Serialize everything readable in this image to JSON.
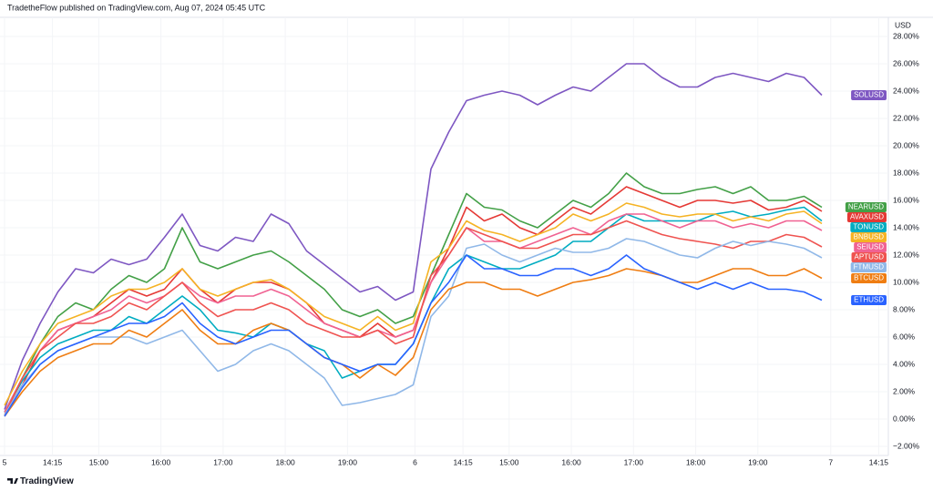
{
  "header": "TradetheFlow published on TradingView.com, Aug 07, 2024 05:45 UTC",
  "footer": "TradingView",
  "chart_data": {
    "type": "line",
    "currency": "USD",
    "grid": true,
    "x": [
      0,
      1,
      2,
      3,
      4,
      5,
      6,
      7,
      8,
      9,
      10,
      11,
      12,
      13,
      14,
      15,
      16,
      17,
      18,
      19,
      20,
      21,
      22,
      23,
      24,
      25,
      26,
      27,
      28,
      29,
      30,
      31,
      32,
      33,
      34,
      35,
      36,
      37,
      38,
      39,
      40,
      41,
      42,
      43,
      44,
      45,
      46
    ],
    "xlim": [
      0,
      50
    ],
    "xticks": [
      {
        "value": 0,
        "label": "5"
      },
      {
        "value": 2.7,
        "label": "14:15"
      },
      {
        "value": 5.3,
        "label": "15:00"
      },
      {
        "value": 8.8,
        "label": "16:00"
      },
      {
        "value": 12.3,
        "label": "17:00"
      },
      {
        "value": 15.8,
        "label": "18:00"
      },
      {
        "value": 19.3,
        "label": "19:00"
      },
      {
        "value": 23.1,
        "label": "6"
      },
      {
        "value": 25.8,
        "label": "14:15"
      },
      {
        "value": 28.4,
        "label": "15:00"
      },
      {
        "value": 31.9,
        "label": "16:00"
      },
      {
        "value": 35.4,
        "label": "17:00"
      },
      {
        "value": 38.9,
        "label": "18:00"
      },
      {
        "value": 42.4,
        "label": "19:00"
      },
      {
        "value": 46.5,
        "label": "7"
      },
      {
        "value": 49.2,
        "label": "14:15"
      }
    ],
    "ylim": [
      -3,
      29
    ],
    "yticks": [
      {
        "value": 28,
        "label": "28.00%"
      },
      {
        "value": 26,
        "label": "26.00%"
      },
      {
        "value": 24,
        "label": "24.00%"
      },
      {
        "value": 22,
        "label": "22.00%"
      },
      {
        "value": 20,
        "label": "20.00%"
      },
      {
        "value": 18,
        "label": "18.00%"
      },
      {
        "value": 16,
        "label": "16.00%"
      },
      {
        "value": 14,
        "label": "14.00%"
      },
      {
        "value": 12,
        "label": "12.00%"
      },
      {
        "value": 10,
        "label": "10.00%"
      },
      {
        "value": 8,
        "label": "8.00%"
      },
      {
        "value": 6,
        "label": "6.00%"
      },
      {
        "value": 4,
        "label": "4.00%"
      },
      {
        "value": 2,
        "label": "2.00%"
      },
      {
        "value": 0,
        "label": "0.00%"
      },
      {
        "value": -2,
        "label": "−2.00%"
      }
    ],
    "series": [
      {
        "name": "SOLUSD",
        "color": "#7e57c2",
        "values": [
          0.7,
          4.3,
          7,
          9.3,
          11,
          10.7,
          11.7,
          11.3,
          11.7,
          13.3,
          15,
          12.7,
          12.3,
          13.3,
          13,
          15,
          14.3,
          12.3,
          11.3,
          10.3,
          9.3,
          9.7,
          8.7,
          9.3,
          18.3,
          21,
          23.3,
          23.7,
          24,
          23.7,
          23,
          23.7,
          24.3,
          24,
          25,
          26,
          26,
          25,
          24.3,
          24.3,
          25,
          25.3,
          25,
          24.7,
          25.3,
          25,
          23.7
        ]
      },
      {
        "name": "NEARUSD",
        "color": "#43a047",
        "values": [
          0.5,
          3,
          5.5,
          7.5,
          8.5,
          8,
          9.5,
          10.5,
          10,
          11,
          14,
          11.5,
          11,
          11.5,
          12,
          12.3,
          11.5,
          10.5,
          9.5,
          8,
          7.5,
          8,
          7,
          7.5,
          10.5,
          13.5,
          16.5,
          15.5,
          15.3,
          14.5,
          14,
          15,
          16,
          15.5,
          16.5,
          18,
          17,
          16.5,
          16.5,
          16.8,
          17,
          16.5,
          17,
          16,
          16,
          16.3,
          15.5
        ]
      },
      {
        "name": "AVAXUSD",
        "color": "#e53935",
        "values": [
          0.3,
          2.5,
          5,
          6.5,
          7,
          7.5,
          8.5,
          9.5,
          9,
          9.5,
          11,
          9.5,
          8.5,
          9.5,
          10,
          10,
          9.5,
          8.5,
          7,
          6.5,
          6,
          7,
          6,
          6.5,
          10,
          12.5,
          15.5,
          14.5,
          15,
          14,
          13.5,
          14.5,
          15.5,
          15,
          16,
          17,
          16.5,
          16,
          15.5,
          16,
          16,
          15.8,
          16,
          15.3,
          15.5,
          16,
          15.2
        ]
      },
      {
        "name": "TONUSD",
        "color": "#00acc1",
        "values": [
          0.5,
          2.8,
          4.5,
          5.5,
          6,
          6.5,
          6.5,
          7.5,
          7,
          8,
          9,
          8,
          6.5,
          6.3,
          6,
          7,
          6.5,
          5.5,
          5,
          3,
          3.5,
          4,
          4,
          5.5,
          8.5,
          11,
          12,
          11.5,
          11,
          11,
          11.5,
          12,
          13,
          13,
          14,
          15,
          14.5,
          14.5,
          14.5,
          14.5,
          15,
          15.2,
          14.8,
          15,
          15.3,
          15.5,
          14.5
        ]
      },
      {
        "name": "BNBUSD",
        "color": "#f5b324",
        "values": [
          1,
          3.5,
          5.5,
          7,
          7.5,
          8,
          9,
          9.5,
          9.5,
          10,
          11,
          9.5,
          9,
          9.5,
          10,
          10.2,
          9.5,
          8.5,
          7.5,
          7,
          6.5,
          7.5,
          6.5,
          7,
          11.5,
          12.5,
          14.5,
          13.8,
          13.5,
          13,
          13.5,
          14,
          15,
          14.5,
          15,
          15.8,
          15.5,
          15,
          14.8,
          15,
          15,
          14.5,
          14.8,
          14.5,
          15,
          15.2,
          14.3
        ]
      },
      {
        "name": "SEIUSD",
        "color": "#f06292",
        "values": [
          0.5,
          3,
          5,
          6.5,
          7,
          7.5,
          8,
          9,
          8.5,
          9,
          10,
          9,
          8.5,
          9,
          9,
          9.5,
          9,
          8,
          7,
          6.5,
          6,
          6.5,
          6,
          6.5,
          10,
          12,
          14,
          13,
          13,
          12.5,
          13,
          13.5,
          14,
          13.5,
          14.5,
          15,
          15,
          14.5,
          14,
          14.5,
          14.5,
          14,
          14.3,
          14,
          14.5,
          14.5,
          13.8
        ]
      },
      {
        "name": "APTUSD",
        "color": "#ef5350",
        "values": [
          0.3,
          3,
          5,
          6,
          7,
          7,
          7.5,
          8.5,
          8,
          9,
          10,
          8.5,
          7.5,
          8,
          8,
          8.5,
          8,
          7,
          6.5,
          6,
          6,
          6.5,
          5.5,
          6,
          10.5,
          12,
          14,
          13.5,
          13,
          12.5,
          12.5,
          13,
          13.5,
          13.5,
          14,
          14.5,
          14,
          13.5,
          13.2,
          13,
          12.8,
          12.5,
          13,
          13,
          13.5,
          13.3,
          12.6
        ]
      },
      {
        "name": "FTMUSD",
        "color": "#90b8e8",
        "values": [
          0.3,
          2.5,
          4,
          5,
          5.5,
          6,
          6,
          6,
          5.5,
          6,
          6.5,
          5,
          3.5,
          4,
          5,
          5.5,
          5,
          4,
          3,
          1,
          1.2,
          1.5,
          1.8,
          2.5,
          7.5,
          9,
          12.5,
          12.8,
          12,
          11.5,
          12,
          12.5,
          12.2,
          12.2,
          12.5,
          13.2,
          13,
          12.5,
          12,
          11.8,
          12.5,
          13,
          12.7,
          13,
          12.8,
          12.5,
          11.8
        ]
      },
      {
        "name": "BTCUSD",
        "color": "#ef7d12",
        "values": [
          0.2,
          2,
          3.5,
          4.5,
          5,
          5.5,
          5.5,
          6.5,
          6,
          7,
          8,
          6.5,
          5.5,
          5.5,
          6.5,
          7,
          6.5,
          5.5,
          4.5,
          4,
          3,
          4,
          3.2,
          4.5,
          8,
          9.5,
          10,
          10,
          9.5,
          9.5,
          9,
          9.5,
          10,
          10.2,
          10.5,
          11,
          10.8,
          10.5,
          10,
          10,
          10.5,
          11,
          11,
          10.5,
          10.5,
          11,
          10.3
        ]
      },
      {
        "name": "ETHUSD",
        "color": "#2962ff",
        "values": [
          0.2,
          2.3,
          4,
          5,
          5.5,
          6,
          6.5,
          7,
          7,
          7.5,
          8.5,
          7,
          6,
          5.5,
          6,
          6.5,
          6.5,
          5.5,
          4.5,
          4,
          3.5,
          4,
          4,
          5.5,
          8.5,
          10,
          12,
          11,
          11,
          10.5,
          10.5,
          11,
          11,
          10.5,
          11,
          12,
          11,
          10.5,
          10,
          9.5,
          10,
          9.5,
          10,
          9.5,
          9.5,
          9.3,
          8.7
        ]
      }
    ]
  }
}
